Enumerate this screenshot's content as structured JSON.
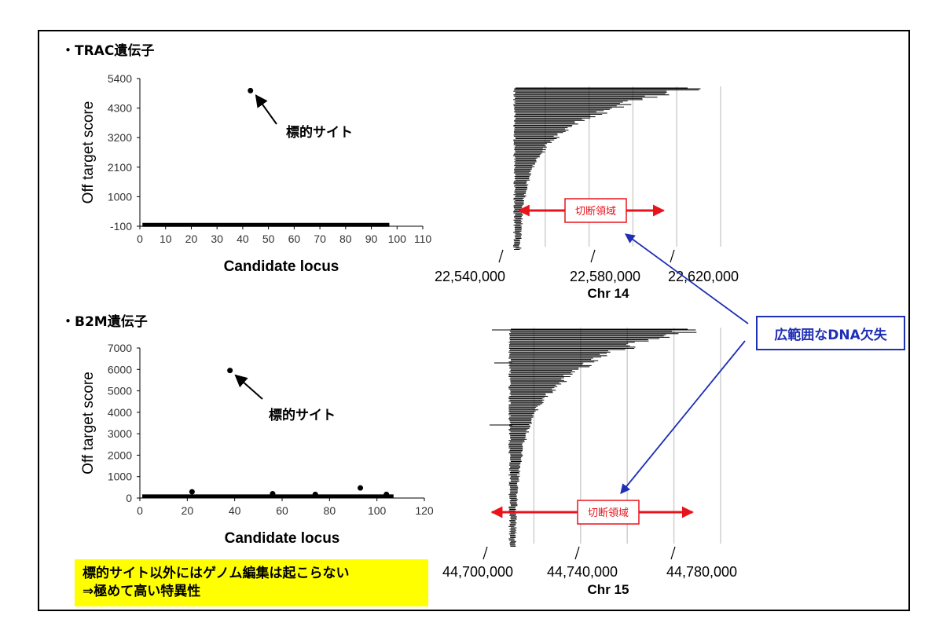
{
  "sections": [
    {
      "title": "・TRAC遺伝子"
    },
    {
      "title": "・B2M遺伝子"
    }
  ],
  "note": {
    "line1": "標的サイト以外にはゲノム編集は起こらない",
    "line2": "⇒極めて高い特異性"
  },
  "callout": {
    "label": "広範囲なDNA欠失"
  },
  "colors": {
    "accent_red": "#e8131b",
    "callout_blue": "#1f2fb5",
    "highlight_yellow": "#ffff00",
    "marker": "#000000",
    "grid": "#cfcfcf"
  },
  "chart_data": [
    {
      "type": "scatter",
      "xlabel": "Candidate locus",
      "ylabel": "Off target score",
      "xlim": [
        0,
        110
      ],
      "xticks": [
        0,
        10,
        20,
        30,
        40,
        50,
        60,
        70,
        80,
        90,
        100,
        110
      ],
      "ylim": [
        -100,
        5400
      ],
      "yticks": [
        -100,
        1000,
        2100,
        3200,
        4300,
        5400
      ],
      "series": [
        {
          "points": [
            [
              43,
              4950
            ]
          ],
          "baseline": {
            "x_range": [
              1,
              97
            ],
            "y": -50
          }
        }
      ],
      "annotations": [
        {
          "text": "標的サイト",
          "target": [
            43,
            4950
          ]
        }
      ]
    },
    {
      "type": "scatter",
      "xlabel": "Candidate locus",
      "ylabel": "Off target score",
      "xlim": [
        0,
        120
      ],
      "xticks": [
        0,
        20,
        40,
        60,
        80,
        100,
        120
      ],
      "ylim": [
        0,
        7000
      ],
      "yticks": [
        0,
        1000,
        2000,
        3000,
        4000,
        5000,
        6000,
        7000
      ],
      "series": [
        {
          "points": [
            [
              38,
              5950
            ],
            [
              22,
              290
            ],
            [
              93,
              470
            ],
            [
              56,
              200
            ],
            [
              74,
              170
            ],
            [
              104,
              170
            ]
          ],
          "baseline": {
            "x_range": [
              1,
              107
            ],
            "y": 80
          }
        }
      ],
      "annotations": [
        {
          "text": "標的サイト",
          "target": [
            38,
            5950
          ]
        }
      ]
    },
    {
      "type": "bar",
      "orientation": "horizontal",
      "xlabel": "Chr 14",
      "xlim": [
        22540000,
        22640000
      ],
      "xticks": [
        22540000,
        22580000,
        22620000
      ],
      "xtick_labels": [
        "22,540,000",
        "22,580,000",
        "22,620,000"
      ],
      "grid": true,
      "region_label": "切断領域",
      "region_range": [
        22548000,
        22614000
      ]
    },
    {
      "type": "bar",
      "orientation": "horizontal",
      "xlabel": "Chr 15",
      "xlim": [
        44700000,
        44800000
      ],
      "xticks": [
        44700000,
        44740000,
        44780000
      ],
      "xtick_labels": [
        "44,700,000",
        "44,740,000",
        "44,780,000"
      ],
      "grid": true,
      "region_label": "切断領域",
      "region_range": [
        44702000,
        44788000
      ]
    }
  ]
}
